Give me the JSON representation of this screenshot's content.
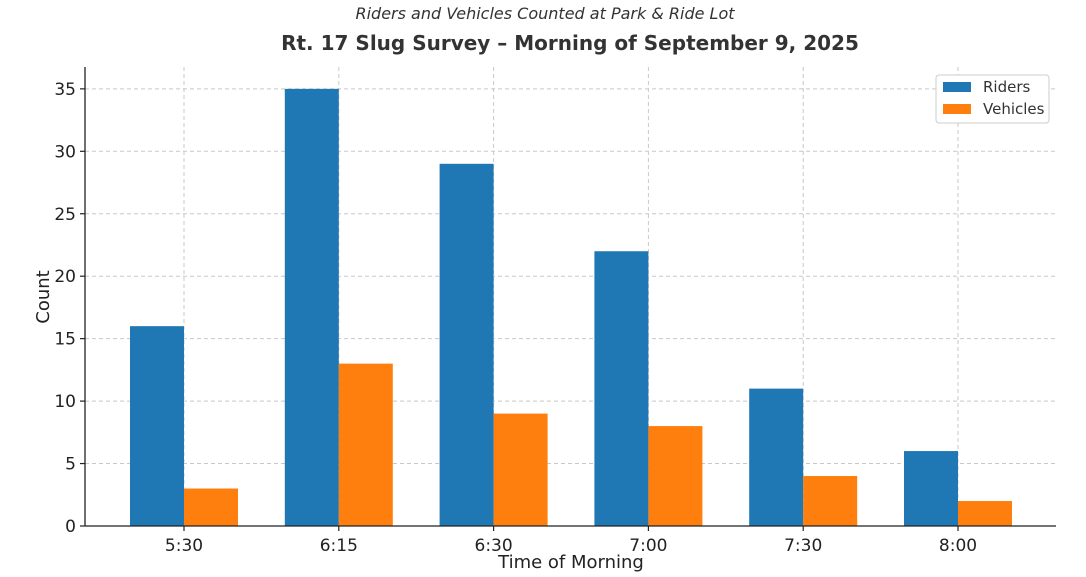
{
  "chart_data": {
    "type": "bar",
    "subtitle": "Riders and Vehicles Counted at Park & Ride Lot",
    "title": "Rt. 17 Slug Survey – Morning of September 9, 2025",
    "xlabel": "Time of Morning",
    "ylabel": "Count",
    "categories": [
      "5:30",
      "6:15",
      "6:30",
      "7:00",
      "7:30",
      "8:00"
    ],
    "series": [
      {
        "name": "Riders",
        "values": [
          16,
          35,
          29,
          22,
          11,
          6
        ],
        "color": "#1f77b4"
      },
      {
        "name": "Vehicles",
        "values": [
          3,
          13,
          9,
          8,
          4,
          2
        ],
        "color": "#ff7f0e"
      }
    ],
    "ylim": [
      0,
      36.75
    ],
    "yticks": [
      0,
      5,
      10,
      15,
      20,
      25,
      30,
      35
    ],
    "grid": true,
    "legend_position": "top-right"
  }
}
